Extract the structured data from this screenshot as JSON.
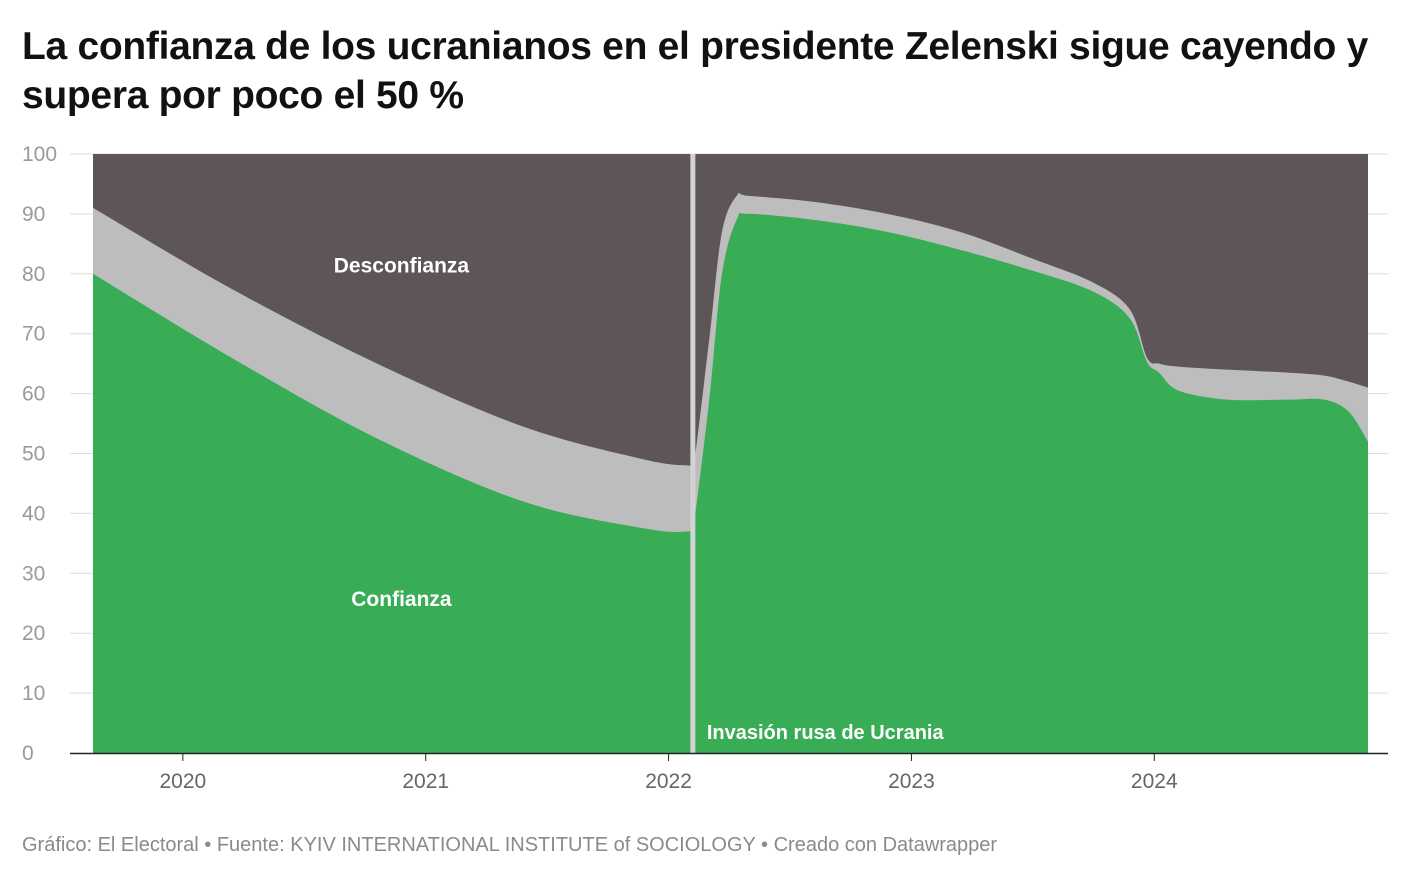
{
  "title": "La confianza de los ucranianos en el presidente Zelenski sigue cayendo y supera por poco el 50 %",
  "footer": "Gráfico: El Electoral • Fuente: KYIV INTERNATIONAL INSTITUTE of SOCIOLOGY • Creado con Datawrapper",
  "colors": {
    "confianza": "#38ad55",
    "neutral": "#bdbdbd",
    "desconfianza": "#5e5558",
    "gridline": "#dddddd",
    "tick_label": "#9a9a9a",
    "x_tick_label": "#666666",
    "axis_line": "#222222",
    "annotation_line": "#d3d3d3"
  },
  "chart_data": {
    "type": "area",
    "stacked": true,
    "ylim": [
      0,
      100
    ],
    "xlim": [
      2019.63,
      2024.88
    ],
    "y_ticks": [
      0,
      10,
      20,
      30,
      40,
      50,
      60,
      70,
      80,
      90,
      100
    ],
    "x_ticks": [
      2020,
      2021,
      2022,
      2023,
      2024
    ],
    "x_tick_labels": [
      "2020",
      "2021",
      "2022",
      "2023",
      "2024"
    ],
    "grid": true,
    "x": [
      2019.63,
      2020.2,
      2020.8,
      2021.4,
      2021.9,
      2022.08,
      2022.1,
      2022.12,
      2022.17,
      2022.22,
      2022.28,
      2022.33,
      2022.6,
      2022.9,
      2023.2,
      2023.5,
      2023.75,
      2023.9,
      2023.97,
      2024.02,
      2024.1,
      2024.3,
      2024.55,
      2024.7,
      2024.8,
      2024.88
    ],
    "series": [
      {
        "name": "Confianza",
        "color_key": "confianza",
        "values": [
          80,
          66,
          52.5,
          42,
          37.5,
          37,
          38,
          43,
          60,
          80,
          89,
          90,
          89,
          87,
          84,
          80.5,
          77,
          72.5,
          65.3,
          63.5,
          60.5,
          59,
          59,
          59,
          57,
          52
        ]
      },
      {
        "name": "Desconfianza",
        "color_key": "desconfianza",
        "upper_limit_values": [
          91,
          77.5,
          65,
          54.5,
          49,
          48,
          48.2,
          53,
          70,
          87,
          93,
          93,
          92,
          90,
          87,
          82.5,
          78.5,
          74,
          66,
          65,
          64.5,
          64,
          63.5,
          63,
          62,
          61
        ]
      }
    ],
    "series_labels": [
      "Desconfianza",
      "Confianza"
    ],
    "annotation": {
      "x": 2022.1,
      "label": "Invasión rusa de Ucrania"
    }
  }
}
